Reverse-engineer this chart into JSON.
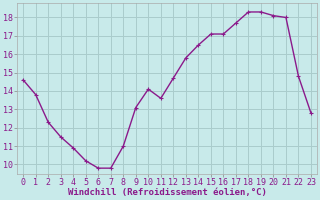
{
  "x": [
    0,
    1,
    2,
    3,
    4,
    5,
    6,
    7,
    8,
    9,
    10,
    11,
    12,
    13,
    14,
    15,
    16,
    17,
    18,
    19,
    20,
    21,
    22,
    23
  ],
  "y": [
    14.6,
    13.8,
    12.3,
    11.5,
    10.9,
    10.2,
    9.8,
    9.8,
    11.0,
    13.1,
    14.1,
    13.6,
    14.7,
    15.8,
    16.5,
    17.1,
    17.1,
    17.7,
    18.3,
    18.3,
    18.1,
    18.0,
    14.8,
    12.8
  ],
  "line_color": "#8b1a8b",
  "marker": "+",
  "marker_size": 3.5,
  "line_width": 1.0,
  "background_color": "#c8eaea",
  "grid_color": "#aacccc",
  "xlabel": "Windchill (Refroidissement éolien,°C)",
  "xlabel_fontsize": 6.5,
  "tick_fontsize": 6.0,
  "ylim": [
    9.5,
    18.8
  ],
  "yticks": [
    10,
    11,
    12,
    13,
    14,
    15,
    16,
    17,
    18
  ],
  "xlim": [
    -0.5,
    23.5
  ],
  "xticks": [
    0,
    1,
    2,
    3,
    4,
    5,
    6,
    7,
    8,
    9,
    10,
    11,
    12,
    13,
    14,
    15,
    16,
    17,
    18,
    19,
    20,
    21,
    22,
    23
  ]
}
